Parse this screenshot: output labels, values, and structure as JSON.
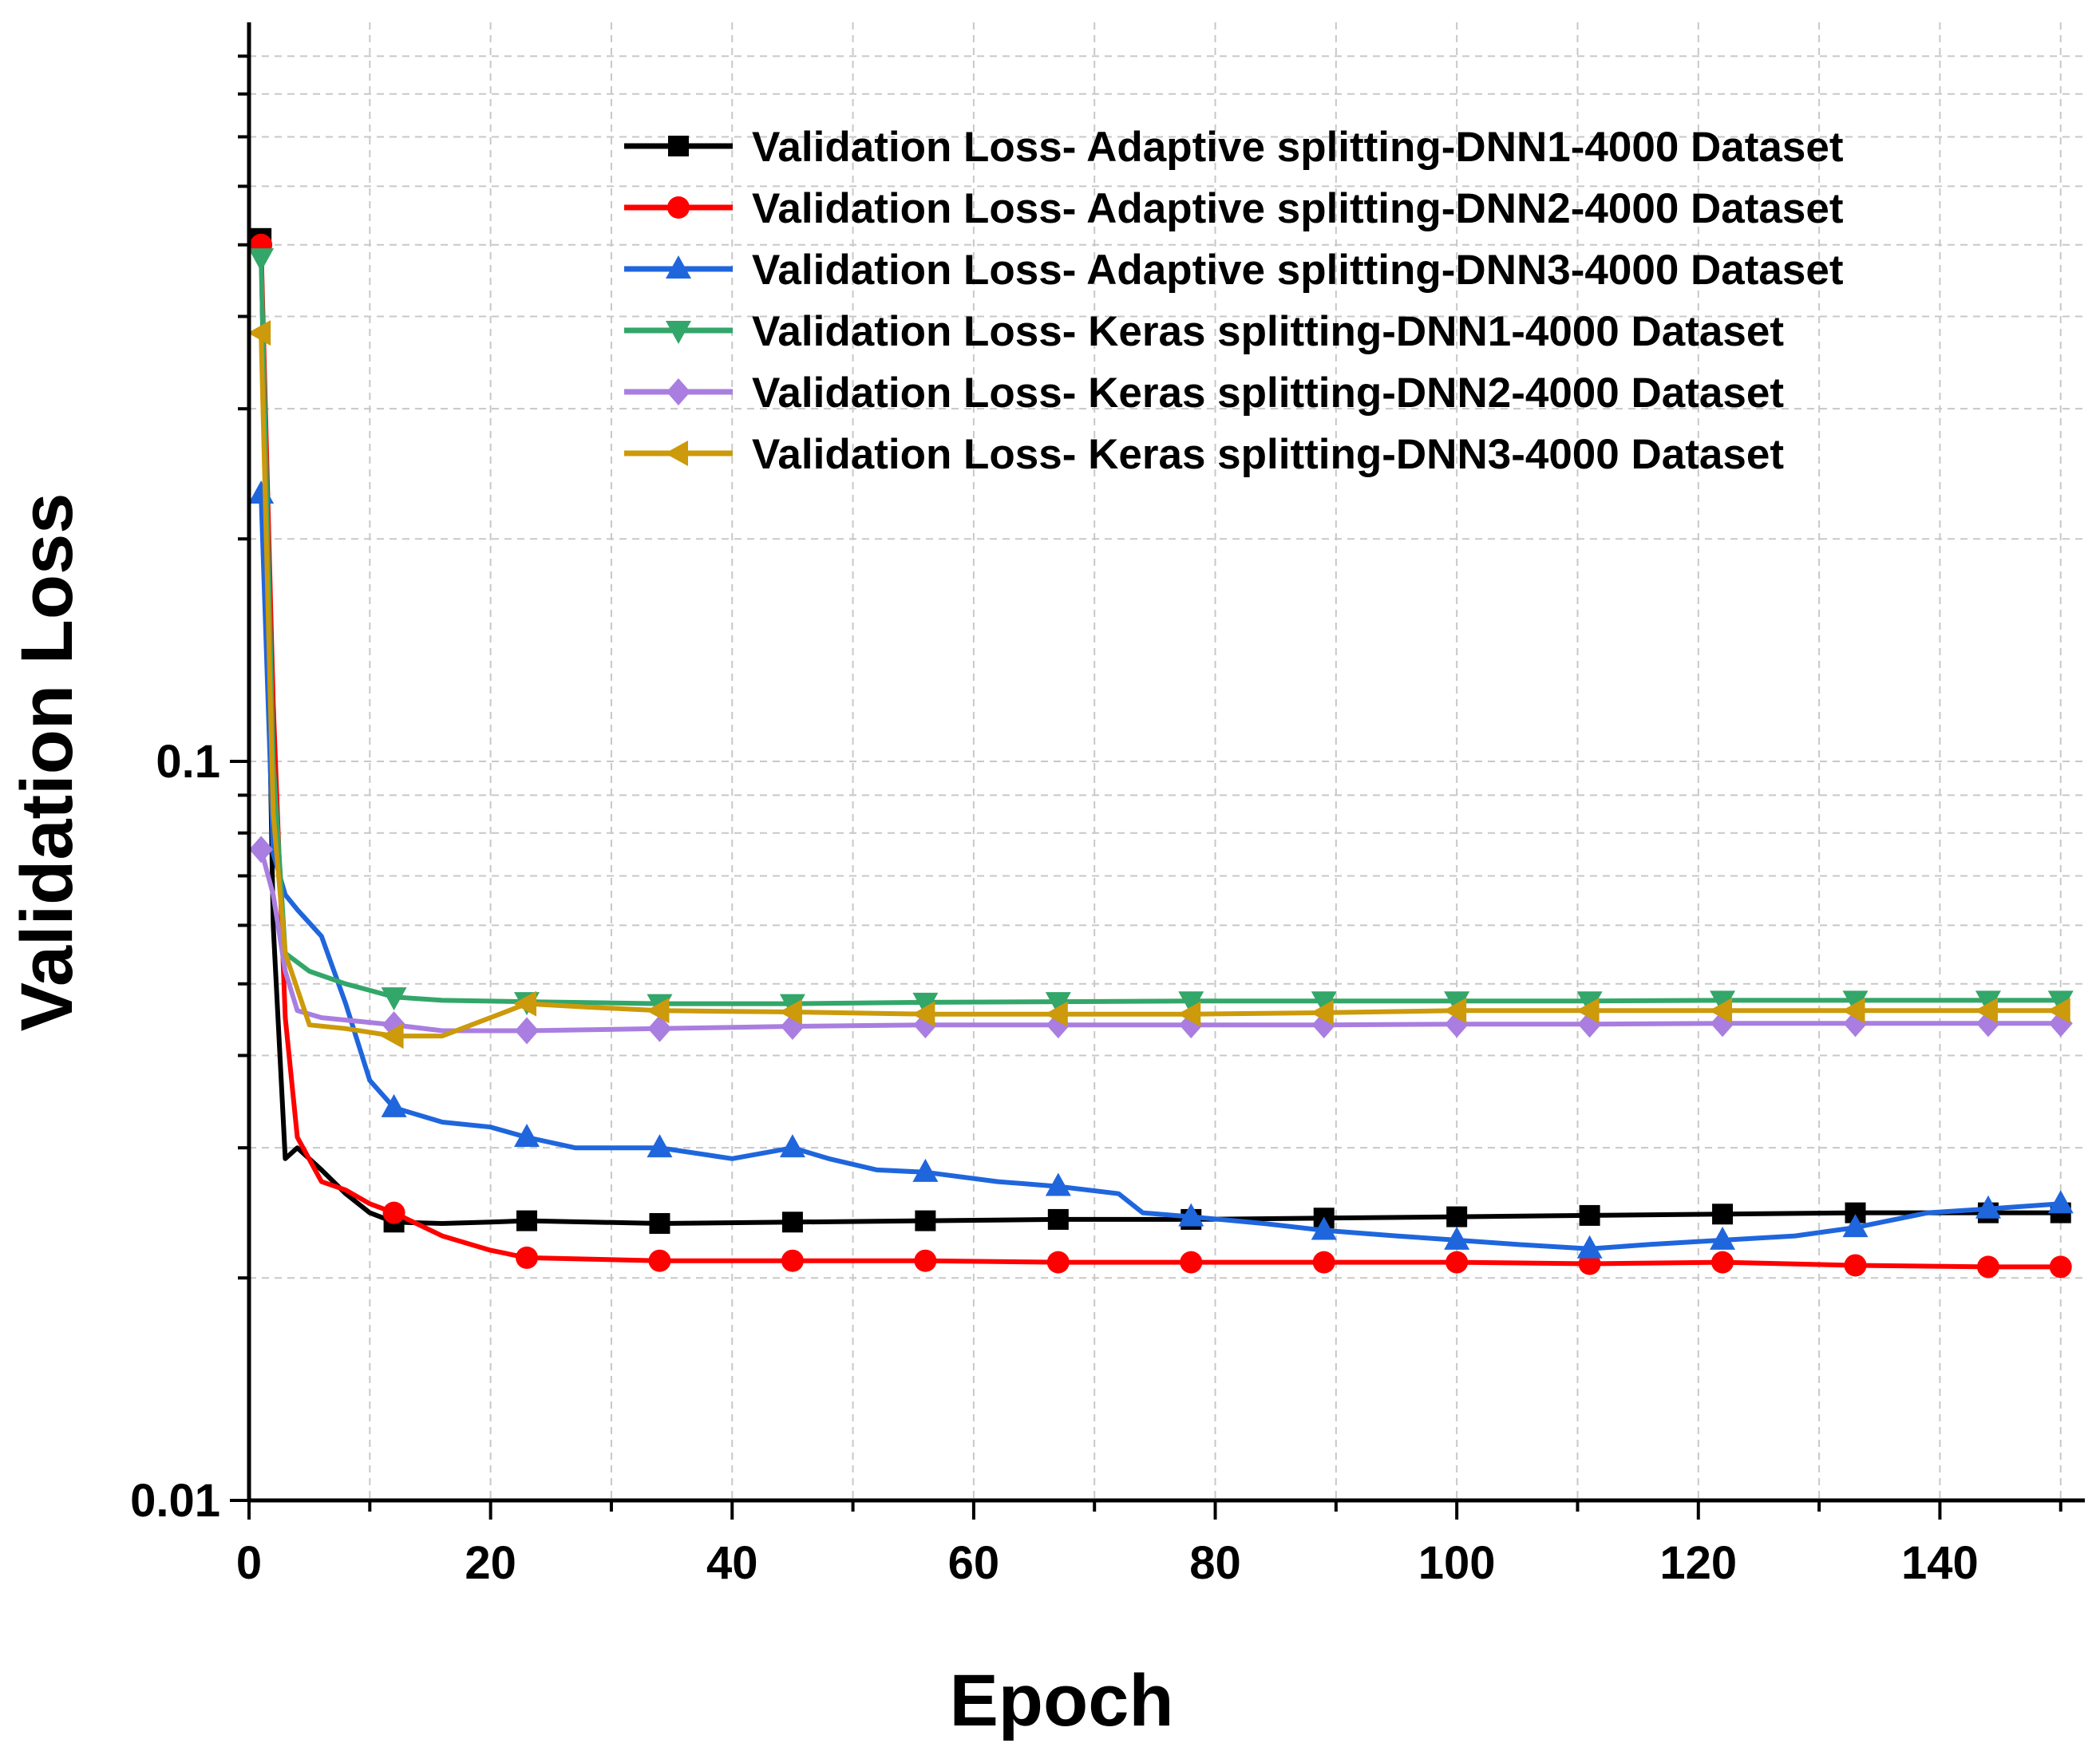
{
  "chart_data": {
    "type": "line",
    "title": "",
    "xlabel": "Epoch",
    "ylabel": "Validation Loss",
    "xlim": [
      0,
      152
    ],
    "ylim": [
      0.01,
      1.0
    ],
    "yscale": "log",
    "grid": true,
    "legend_position": "top-right",
    "x_ticks": [
      0,
      20,
      40,
      60,
      80,
      100,
      120,
      140
    ],
    "x_tick_labels": [
      "0",
      "20",
      "40",
      "60",
      "80",
      "100",
      "120",
      "140"
    ],
    "y_ticks": [
      0.01,
      0.1
    ],
    "y_tick_labels": [
      "0.01",
      "0.1"
    ],
    "marker_epochs": [
      1,
      12,
      23,
      34,
      45,
      56,
      67,
      78,
      89,
      100,
      111,
      122,
      133,
      144,
      150
    ],
    "series": [
      {
        "name": "Validation Loss- Adaptive splitting-DNN1-4000 Dataset",
        "color": "#000000",
        "marker": "square",
        "points": [
          [
            1,
            0.51
          ],
          [
            2,
            0.06
          ],
          [
            3,
            0.029
          ],
          [
            4,
            0.03
          ],
          [
            6,
            0.028
          ],
          [
            8,
            0.026
          ],
          [
            10,
            0.0245
          ],
          [
            12,
            0.0238
          ],
          [
            16,
            0.0237
          ],
          [
            20,
            0.0238
          ],
          [
            23,
            0.0239
          ],
          [
            34,
            0.0237
          ],
          [
            45,
            0.0238
          ],
          [
            56,
            0.0239
          ],
          [
            67,
            0.024
          ],
          [
            78,
            0.024
          ],
          [
            89,
            0.0241
          ],
          [
            100,
            0.0242
          ],
          [
            111,
            0.0243
          ],
          [
            122,
            0.0244
          ],
          [
            133,
            0.0245
          ],
          [
            144,
            0.0245
          ],
          [
            150,
            0.0245
          ]
        ]
      },
      {
        "name": "Validation Loss- Adaptive splitting-DNN2-4000 Dataset",
        "color": "#ff0000",
        "marker": "circle",
        "points": [
          [
            1,
            0.5
          ],
          [
            2,
            0.12
          ],
          [
            3,
            0.045
          ],
          [
            4,
            0.031
          ],
          [
            6,
            0.027
          ],
          [
            8,
            0.0263
          ],
          [
            10,
            0.0252
          ],
          [
            12,
            0.0245
          ],
          [
            16,
            0.0228
          ],
          [
            20,
            0.0218
          ],
          [
            23,
            0.0213
          ],
          [
            34,
            0.0211
          ],
          [
            45,
            0.0211
          ],
          [
            56,
            0.0211
          ],
          [
            67,
            0.021
          ],
          [
            78,
            0.021
          ],
          [
            89,
            0.021
          ],
          [
            100,
            0.021
          ],
          [
            111,
            0.0209
          ],
          [
            122,
            0.021
          ],
          [
            133,
            0.0208
          ],
          [
            144,
            0.0207
          ],
          [
            150,
            0.0207
          ]
        ]
      },
      {
        "name": "Validation Loss- Adaptive splitting-DNN3-4000 Dataset",
        "color": "#1f66dd",
        "marker": "triangle-up",
        "points": [
          [
            1,
            0.23
          ],
          [
            2,
            0.075
          ],
          [
            3,
            0.066
          ],
          [
            4,
            0.063
          ],
          [
            6,
            0.058
          ],
          [
            8,
            0.047
          ],
          [
            10,
            0.037
          ],
          [
            12,
            0.034
          ],
          [
            16,
            0.0325
          ],
          [
            20,
            0.032
          ],
          [
            23,
            0.031
          ],
          [
            27,
            0.03
          ],
          [
            34,
            0.03
          ],
          [
            40,
            0.029
          ],
          [
            45,
            0.03
          ],
          [
            48,
            0.029
          ],
          [
            52,
            0.028
          ],
          [
            56,
            0.0278
          ],
          [
            62,
            0.027
          ],
          [
            67,
            0.0266
          ],
          [
            72,
            0.026
          ],
          [
            74,
            0.0245
          ],
          [
            78,
            0.0242
          ],
          [
            84,
            0.0237
          ],
          [
            89,
            0.0232
          ],
          [
            95,
            0.0228
          ],
          [
            100,
            0.0225
          ],
          [
            105,
            0.0222
          ],
          [
            111,
            0.0219
          ],
          [
            116,
            0.0222
          ],
          [
            122,
            0.0225
          ],
          [
            128,
            0.0228
          ],
          [
            133,
            0.0234
          ],
          [
            139,
            0.0245
          ],
          [
            144,
            0.0248
          ],
          [
            150,
            0.0252
          ]
        ]
      },
      {
        "name": "Validation Loss- Keras splitting-DNN1-4000 Dataset",
        "color": "#33a66a",
        "marker": "triangle-down",
        "points": [
          [
            1,
            0.48
          ],
          [
            2,
            0.1
          ],
          [
            3,
            0.055
          ],
          [
            5,
            0.052
          ],
          [
            8,
            0.05
          ],
          [
            10,
            0.049
          ],
          [
            12,
            0.048
          ],
          [
            16,
            0.0475
          ],
          [
            23,
            0.0473
          ],
          [
            34,
            0.047
          ],
          [
            45,
            0.047
          ],
          [
            56,
            0.0472
          ],
          [
            67,
            0.0473
          ],
          [
            78,
            0.0474
          ],
          [
            89,
            0.0474
          ],
          [
            100,
            0.0474
          ],
          [
            111,
            0.0474
          ],
          [
            122,
            0.0475
          ],
          [
            133,
            0.0475
          ],
          [
            144,
            0.0475
          ],
          [
            150,
            0.0475
          ]
        ]
      },
      {
        "name": "Validation Loss- Keras splitting-DNN2-4000 Dataset",
        "color": "#a97ee0",
        "marker": "diamond",
        "points": [
          [
            1,
            0.076
          ],
          [
            2,
            0.066
          ],
          [
            3,
            0.052
          ],
          [
            4,
            0.046
          ],
          [
            6,
            0.045
          ],
          [
            9,
            0.0445
          ],
          [
            12,
            0.044
          ],
          [
            16,
            0.0432
          ],
          [
            23,
            0.0432
          ],
          [
            34,
            0.0435
          ],
          [
            45,
            0.0438
          ],
          [
            56,
            0.044
          ],
          [
            67,
            0.044
          ],
          [
            78,
            0.044
          ],
          [
            89,
            0.044
          ],
          [
            100,
            0.0441
          ],
          [
            111,
            0.0441
          ],
          [
            122,
            0.0442
          ],
          [
            133,
            0.0442
          ],
          [
            144,
            0.0442
          ],
          [
            150,
            0.0442
          ]
        ]
      },
      {
        "name": "Validation Loss- Keras splitting-DNN3-4000 Dataset",
        "color": "#cc9a0a",
        "marker": "triangle-left",
        "points": [
          [
            1,
            0.38
          ],
          [
            2,
            0.085
          ],
          [
            3,
            0.055
          ],
          [
            5,
            0.044
          ],
          [
            8,
            0.0435
          ],
          [
            12,
            0.0425
          ],
          [
            16,
            0.0425
          ],
          [
            20,
            0.045
          ],
          [
            23,
            0.047
          ],
          [
            28,
            0.0465
          ],
          [
            34,
            0.046
          ],
          [
            45,
            0.0458
          ],
          [
            56,
            0.0455
          ],
          [
            67,
            0.0455
          ],
          [
            78,
            0.0455
          ],
          [
            89,
            0.0457
          ],
          [
            100,
            0.046
          ],
          [
            111,
            0.046
          ],
          [
            122,
            0.046
          ],
          [
            133,
            0.046
          ],
          [
            144,
            0.046
          ],
          [
            150,
            0.046
          ]
        ]
      }
    ]
  }
}
